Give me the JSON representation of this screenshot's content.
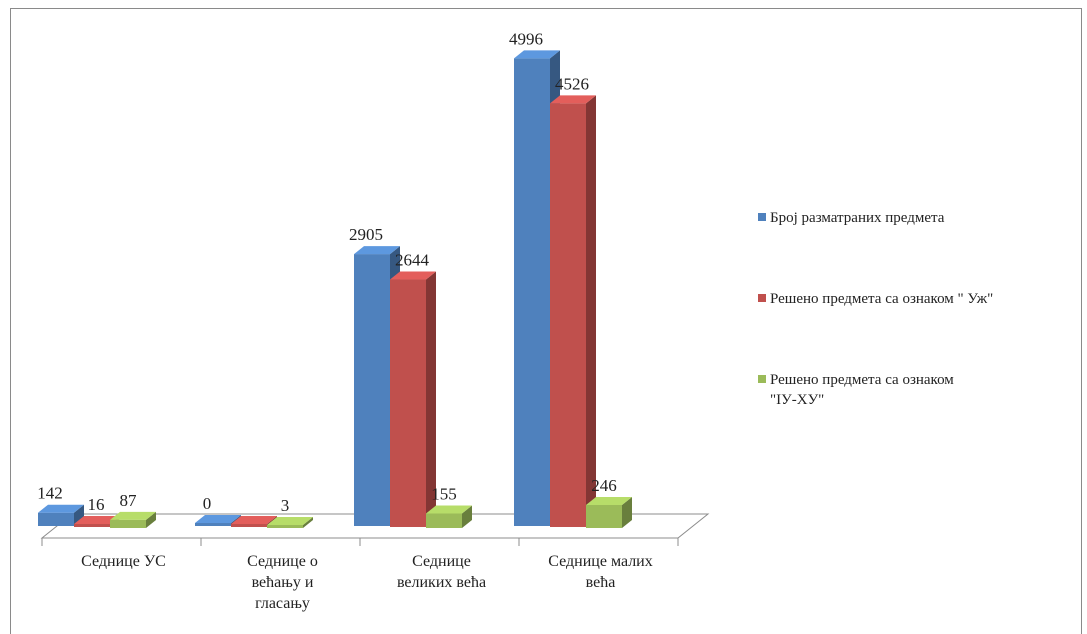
{
  "chart_data": {
    "type": "bar",
    "style": "3d-clustered-column",
    "categories": [
      [
        "Седнице УС"
      ],
      [
        "Седнице о",
        "већању и",
        "гласању"
      ],
      [
        "Седнице",
        "великих већа"
      ],
      [
        "Седнице малих",
        "већа"
      ]
    ],
    "series": [
      {
        "name": "Број разматраних предмета",
        "values": [
          142,
          0,
          2905,
          4996
        ],
        "labels": [
          "142",
          "0",
          "2905",
          "4996"
        ],
        "color": "#4f81bd"
      },
      {
        "name": "Решено предмета са ознаком \" Уж\"",
        "values": [
          16,
          0,
          2644,
          4526
        ],
        "labels": [
          "16",
          "",
          "2644",
          "4526"
        ],
        "color": "#c0504d"
      },
      {
        "name": "Решено предмета са ознаком \"IУ-ХУ\"",
        "values": [
          87,
          3,
          155,
          246
        ],
        "labels": [
          "87",
          "3",
          "155",
          "246"
        ],
        "color": "#9bbb59"
      }
    ],
    "legend_lines": [
      [
        "Број разматраних предмета"
      ],
      [
        "Решено предмета са ознаком \" Уж\""
      ],
      [
        "Решено предмета са ознаком",
        "\"IУ-ХУ\""
      ]
    ],
    "legend_position": "right",
    "ylim": [
      0,
      5000
    ],
    "grid": false,
    "title": ""
  }
}
